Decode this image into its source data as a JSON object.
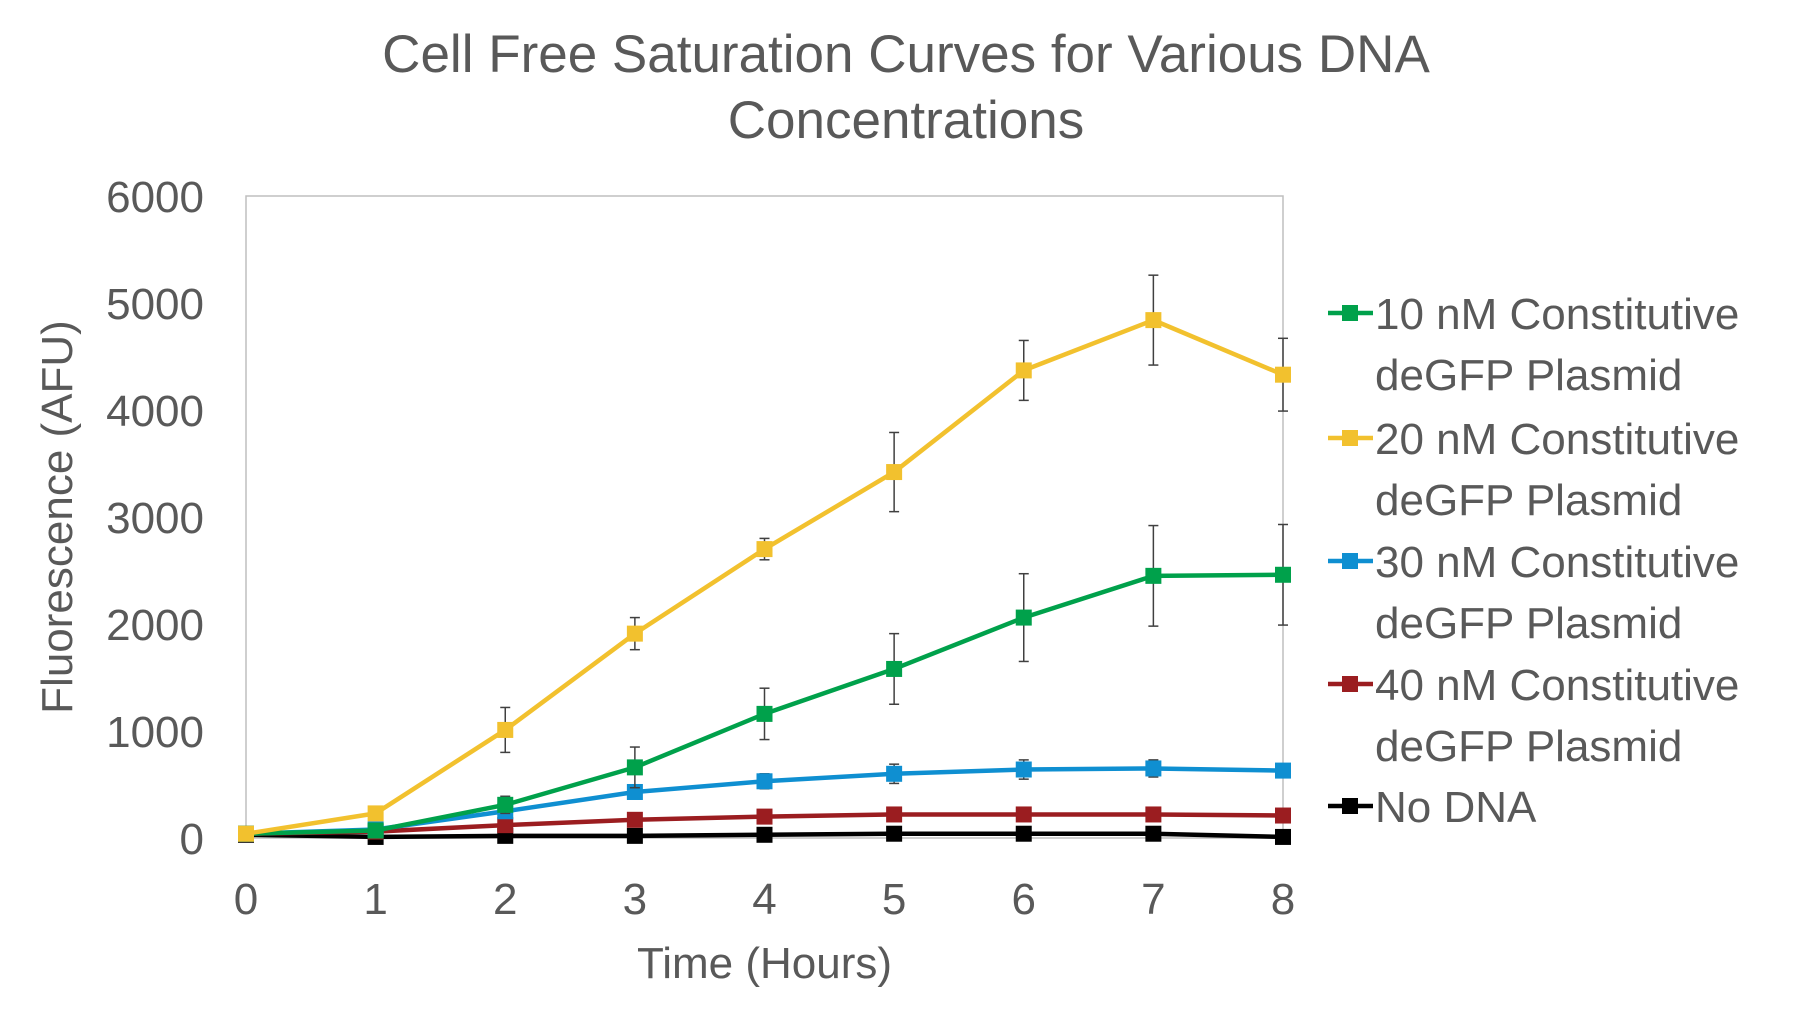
{
  "chart_data": {
    "type": "line",
    "title": "Cell Free Saturation Curves for Various DNA Concentrations",
    "title_lines": [
      "Cell Free Saturation Curves for Various DNA",
      "Concentrations"
    ],
    "xlabel": "Time (Hours)",
    "ylabel": "Fluorescence (AFU)",
    "xlim": [
      0,
      8
    ],
    "ylim": [
      0,
      6000
    ],
    "x_ticks": [
      "0",
      "1",
      "2",
      "3",
      "4",
      "5",
      "6",
      "7",
      "8"
    ],
    "y_ticks": [
      "0",
      "1000",
      "2000",
      "3000",
      "4000",
      "5000",
      "6000"
    ],
    "x": [
      0,
      1,
      2,
      3,
      4,
      5,
      6,
      7,
      8
    ],
    "grid": false,
    "legend_position": "right",
    "series": [
      {
        "name": "10 nM Constitutive deGFP Plasmid",
        "name_lines": [
          "10 nM Constitutive",
          "deGFP Plasmid"
        ],
        "color": "#00A14B",
        "values": [
          40,
          70,
          310,
          660,
          1160,
          1580,
          2060,
          2450,
          2460
        ],
        "errors": [
          5,
          20,
          80,
          190,
          240,
          330,
          410,
          470,
          470
        ]
      },
      {
        "name": "20 nM Constitutive deGFP Plasmid",
        "name_lines": [
          "20 nM Constitutive",
          "deGFP Plasmid"
        ],
        "color": "#F2C12E",
        "values": [
          40,
          230,
          1010,
          1910,
          2700,
          3420,
          4370,
          4840,
          4330
        ],
        "errors": [
          5,
          60,
          210,
          150,
          100,
          370,
          280,
          420,
          340
        ]
      },
      {
        "name": "30 nM Constitutive deGFP Plasmid",
        "name_lines": [
          "30 nM Constitutive",
          "deGFP Plasmid"
        ],
        "color": "#0F8FD1",
        "values": [
          40,
          80,
          250,
          430,
          530,
          600,
          640,
          650,
          630
        ],
        "errors": [
          5,
          15,
          40,
          50,
          70,
          90,
          90,
          80,
          50
        ]
      },
      {
        "name": "40 nM Constitutive deGFP Plasmid",
        "name_lines": [
          "40 nM Constitutive",
          "deGFP Plasmid"
        ],
        "color": "#9B1D20",
        "values": [
          40,
          60,
          120,
          170,
          200,
          220,
          220,
          220,
          210
        ],
        "errors": [
          5,
          10,
          20,
          20,
          25,
          30,
          30,
          25,
          20
        ]
      },
      {
        "name": "No DNA",
        "name_lines": [
          "No DNA"
        ],
        "color": "#000000",
        "values": [
          30,
          10,
          20,
          20,
          30,
          40,
          40,
          40,
          10
        ],
        "errors": [
          5,
          5,
          5,
          5,
          5,
          5,
          5,
          5,
          5
        ]
      }
    ]
  }
}
